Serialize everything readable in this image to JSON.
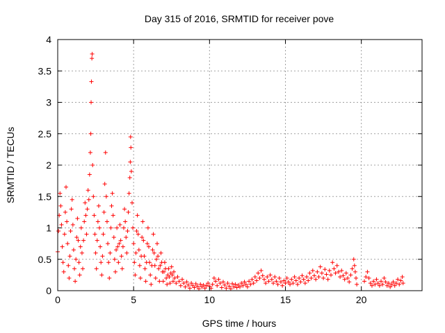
{
  "chart_data": {
    "type": "scatter",
    "title": "Day 315 of 2016, SRMTID for receiver pove",
    "xlabel": "GPS time / hours",
    "ylabel": "SRMTID / TECUs",
    "xlim": [
      0,
      24
    ],
    "ylim": [
      0,
      4
    ],
    "xticks": [
      0,
      5,
      10,
      15,
      20
    ],
    "yticks": [
      0,
      0.5,
      1,
      1.5,
      2,
      2.5,
      3,
      3.5,
      4
    ],
    "xtick_labels": [
      "0",
      "5",
      "10",
      "15",
      "20"
    ],
    "ytick_labels": [
      "0",
      "0.5",
      "1",
      "1.5",
      "2",
      "2.5",
      "3",
      "3.5",
      "4"
    ],
    "grid": true,
    "marker": "plus",
    "color": "#ff0000",
    "series": [
      {
        "name": "SRMTID",
        "points": [
          [
            0.0,
            0.62
          ],
          [
            0.05,
            0.95
          ],
          [
            0.1,
            1.2
          ],
          [
            0.15,
            1.55
          ],
          [
            0.2,
            1.35
          ],
          [
            0.25,
            1.05
          ],
          [
            0.3,
            0.7
          ],
          [
            0.35,
            0.45
          ],
          [
            0.4,
            0.3
          ],
          [
            0.45,
            0.9
          ],
          [
            0.5,
            1.25
          ],
          [
            0.55,
            1.65
          ],
          [
            0.6,
            1.1
          ],
          [
            0.65,
            0.75
          ],
          [
            0.7,
            0.4
          ],
          [
            0.75,
            0.2
          ],
          [
            0.8,
            0.55
          ],
          [
            0.85,
            0.95
          ],
          [
            0.9,
            1.3
          ],
          [
            0.95,
            1.45
          ],
          [
            1.0,
            1.05
          ],
          [
            1.05,
            0.65
          ],
          [
            1.1,
            0.35
          ],
          [
            1.15,
            0.15
          ],
          [
            1.2,
            0.5
          ],
          [
            1.25,
            0.85
          ],
          [
            1.3,
            1.15
          ],
          [
            1.35,
            0.8
          ],
          [
            1.4,
            0.45
          ],
          [
            1.45,
            0.25
          ],
          [
            1.5,
            0.7
          ],
          [
            1.55,
            1.0
          ],
          [
            1.6,
            0.6
          ],
          [
            1.65,
            0.35
          ],
          [
            1.7,
            0.8
          ],
          [
            1.75,
            1.1
          ],
          [
            1.8,
            1.4
          ],
          [
            1.85,
            1.2
          ],
          [
            1.9,
            0.9
          ],
          [
            1.95,
            1.3
          ],
          [
            2.0,
            1.6
          ],
          [
            2.05,
            1.45
          ],
          [
            2.1,
            1.85
          ],
          [
            2.15,
            2.2
          ],
          [
            2.18,
            2.5
          ],
          [
            2.2,
            3.0
          ],
          [
            2.22,
            3.33
          ],
          [
            2.25,
            3.7
          ],
          [
            2.27,
            3.77
          ],
          [
            2.3,
            2.0
          ],
          [
            2.35,
            1.5
          ],
          [
            2.4,
            1.2
          ],
          [
            2.45,
            0.9
          ],
          [
            2.5,
            0.6
          ],
          [
            2.55,
            0.35
          ],
          [
            2.6,
            0.8
          ],
          [
            2.65,
            1.1
          ],
          [
            2.7,
            1.35
          ],
          [
            2.75,
            1.0
          ],
          [
            2.8,
            0.7
          ],
          [
            2.85,
            0.45
          ],
          [
            2.9,
            0.25
          ],
          [
            2.95,
            0.55
          ],
          [
            3.0,
            0.9
          ],
          [
            3.05,
            1.25
          ],
          [
            3.1,
            1.7
          ],
          [
            3.15,
            2.2
          ],
          [
            3.2,
            1.5
          ],
          [
            3.25,
            1.1
          ],
          [
            3.3,
            0.75
          ],
          [
            3.35,
            0.45
          ],
          [
            3.4,
            0.2
          ],
          [
            3.45,
            0.6
          ],
          [
            3.5,
            1.0
          ],
          [
            3.55,
            1.35
          ],
          [
            3.6,
            1.55
          ],
          [
            3.65,
            1.2
          ],
          [
            3.7,
            0.85
          ],
          [
            3.75,
            0.5
          ],
          [
            3.8,
            0.3
          ],
          [
            3.85,
            0.65
          ],
          [
            3.9,
            1.0
          ],
          [
            3.95,
            0.7
          ],
          [
            4.0,
            0.45
          ],
          [
            4.05,
            0.75
          ],
          [
            4.1,
            1.05
          ],
          [
            4.15,
            0.8
          ],
          [
            4.2,
            0.55
          ],
          [
            4.25,
            0.35
          ],
          [
            4.3,
            0.7
          ],
          [
            4.35,
            1.0
          ],
          [
            4.4,
            1.3
          ],
          [
            4.45,
            1.1
          ],
          [
            4.5,
            0.85
          ],
          [
            4.55,
            0.6
          ],
          [
            4.6,
            0.95
          ],
          [
            4.65,
            1.25
          ],
          [
            4.7,
            1.55
          ],
          [
            4.75,
            1.8
          ],
          [
            4.78,
            2.05
          ],
          [
            4.8,
            2.45
          ],
          [
            4.82,
            2.28
          ],
          [
            4.85,
            1.9
          ],
          [
            4.9,
            1.4
          ],
          [
            4.95,
            1.0
          ],
          [
            5.0,
            0.75
          ],
          [
            5.05,
            0.45
          ],
          [
            5.1,
            0.25
          ],
          [
            5.15,
            0.6
          ],
          [
            5.2,
            0.95
          ],
          [
            5.25,
            1.2
          ],
          [
            5.3,
            0.9
          ],
          [
            5.35,
            0.65
          ],
          [
            5.4,
            0.4
          ],
          [
            5.45,
            0.2
          ],
          [
            5.5,
            0.55
          ],
          [
            5.55,
            0.85
          ],
          [
            5.6,
            1.1
          ],
          [
            5.65,
            0.8
          ],
          [
            5.7,
            0.55
          ],
          [
            5.75,
            0.35
          ],
          [
            5.8,
            0.15
          ],
          [
            5.85,
            0.45
          ],
          [
            5.9,
            0.75
          ],
          [
            5.95,
            1.0
          ],
          [
            6.0,
            0.7
          ],
          [
            6.05,
            0.45
          ],
          [
            6.1,
            0.25
          ],
          [
            6.15,
            0.1
          ],
          [
            6.2,
            0.4
          ],
          [
            6.25,
            0.65
          ],
          [
            6.3,
            0.9
          ],
          [
            6.35,
            0.6
          ],
          [
            6.4,
            0.4
          ],
          [
            6.45,
            0.2
          ],
          [
            6.5,
            0.5
          ],
          [
            6.55,
            0.75
          ],
          [
            6.6,
            0.55
          ],
          [
            6.65,
            0.35
          ],
          [
            6.7,
            0.15
          ],
          [
            6.75,
            0.4
          ],
          [
            6.8,
            0.6
          ],
          [
            6.85,
            0.45
          ],
          [
            6.9,
            0.3
          ],
          [
            6.95,
            0.15
          ],
          [
            7.0,
            0.3
          ],
          [
            7.05,
            0.45
          ],
          [
            7.1,
            0.35
          ],
          [
            7.15,
            0.2
          ],
          [
            7.2,
            0.1
          ],
          [
            7.25,
            0.25
          ],
          [
            7.3,
            0.35
          ],
          [
            7.35,
            0.22
          ],
          [
            7.4,
            0.12
          ],
          [
            7.45,
            0.28
          ],
          [
            7.5,
            0.38
          ],
          [
            7.55,
            0.25
          ],
          [
            7.6,
            0.15
          ],
          [
            7.65,
            0.3
          ],
          [
            7.7,
            0.2
          ],
          [
            7.8,
            0.12
          ],
          [
            7.9,
            0.22
          ],
          [
            8.0,
            0.15
          ],
          [
            8.1,
            0.08
          ],
          [
            8.2,
            0.18
          ],
          [
            8.3,
            0.12
          ],
          [
            8.4,
            0.06
          ],
          [
            8.5,
            0.14
          ],
          [
            8.6,
            0.09
          ],
          [
            8.7,
            0.04
          ],
          [
            8.8,
            0.12
          ],
          [
            8.9,
            0.08
          ],
          [
            9.0,
            0.05
          ],
          [
            9.1,
            0.11
          ],
          [
            9.2,
            0.07
          ],
          [
            9.3,
            0.03
          ],
          [
            9.4,
            0.1
          ],
          [
            9.5,
            0.06
          ],
          [
            9.6,
            0.09
          ],
          [
            9.7,
            0.04
          ],
          [
            9.8,
            0.08
          ],
          [
            9.9,
            0.12
          ],
          [
            10.0,
            0.07
          ],
          [
            10.1,
            0.04
          ],
          [
            10.2,
            0.1
          ],
          [
            10.3,
            0.2
          ],
          [
            10.4,
            0.15
          ],
          [
            10.5,
            0.08
          ],
          [
            10.6,
            0.18
          ],
          [
            10.7,
            0.12
          ],
          [
            10.8,
            0.05
          ],
          [
            10.9,
            0.14
          ],
          [
            11.0,
            0.09
          ],
          [
            11.1,
            0.04
          ],
          [
            11.2,
            0.12
          ],
          [
            11.3,
            0.07
          ],
          [
            11.4,
            0.03
          ],
          [
            11.5,
            0.11
          ],
          [
            11.6,
            0.06
          ],
          [
            11.7,
            0.1
          ],
          [
            11.8,
            0.05
          ],
          [
            11.9,
            0.09
          ],
          [
            12.0,
            0.06
          ],
          [
            12.1,
            0.12
          ],
          [
            12.2,
            0.08
          ],
          [
            12.3,
            0.14
          ],
          [
            12.4,
            0.1
          ],
          [
            12.5,
            0.06
          ],
          [
            12.6,
            0.15
          ],
          [
            12.7,
            0.1
          ],
          [
            12.8,
            0.18
          ],
          [
            12.9,
            0.12
          ],
          [
            13.0,
            0.22
          ],
          [
            13.1,
            0.16
          ],
          [
            13.2,
            0.28
          ],
          [
            13.3,
            0.2
          ],
          [
            13.4,
            0.32
          ],
          [
            13.5,
            0.24
          ],
          [
            13.6,
            0.18
          ],
          [
            13.7,
            0.12
          ],
          [
            13.8,
            0.22
          ],
          [
            13.9,
            0.15
          ],
          [
            14.0,
            0.25
          ],
          [
            14.1,
            0.18
          ],
          [
            14.2,
            0.12
          ],
          [
            14.3,
            0.22
          ],
          [
            14.4,
            0.15
          ],
          [
            14.5,
            0.1
          ],
          [
            14.6,
            0.2
          ],
          [
            14.7,
            0.14
          ],
          [
            14.8,
            0.08
          ],
          [
            14.9,
            0.16
          ],
          [
            15.0,
            0.12
          ],
          [
            15.1,
            0.2
          ],
          [
            15.2,
            0.14
          ],
          [
            15.3,
            0.1
          ],
          [
            15.4,
            0.18
          ],
          [
            15.5,
            0.12
          ],
          [
            15.6,
            0.22
          ],
          [
            15.7,
            0.16
          ],
          [
            15.8,
            0.1
          ],
          [
            15.9,
            0.2
          ],
          [
            16.0,
            0.14
          ],
          [
            16.1,
            0.24
          ],
          [
            16.2,
            0.18
          ],
          [
            16.3,
            0.12
          ],
          [
            16.4,
            0.22
          ],
          [
            16.5,
            0.16
          ],
          [
            16.6,
            0.28
          ],
          [
            16.7,
            0.2
          ],
          [
            16.8,
            0.32
          ],
          [
            16.9,
            0.24
          ],
          [
            17.0,
            0.18
          ],
          [
            17.1,
            0.3
          ],
          [
            17.2,
            0.22
          ],
          [
            17.3,
            0.38
          ],
          [
            17.4,
            0.28
          ],
          [
            17.5,
            0.2
          ],
          [
            17.6,
            0.34
          ],
          [
            17.7,
            0.26
          ],
          [
            17.8,
            0.18
          ],
          [
            17.9,
            0.32
          ],
          [
            18.0,
            0.25
          ],
          [
            18.1,
            0.45
          ],
          [
            18.2,
            0.35
          ],
          [
            18.3,
            0.28
          ],
          [
            18.4,
            0.4
          ],
          [
            18.5,
            0.3
          ],
          [
            18.6,
            0.22
          ],
          [
            18.7,
            0.32
          ],
          [
            18.8,
            0.24
          ],
          [
            18.9,
            0.18
          ],
          [
            19.0,
            0.28
          ],
          [
            19.1,
            0.2
          ],
          [
            19.2,
            0.14
          ],
          [
            19.3,
            0.25
          ],
          [
            19.4,
            0.35
          ],
          [
            19.5,
            0.5
          ],
          [
            19.55,
            0.4
          ],
          [
            19.6,
            0.3
          ],
          [
            19.65,
            0.2
          ],
          [
            19.7,
            0.1
          ],
          [
            20.2,
            0.15
          ],
          [
            20.3,
            0.22
          ],
          [
            20.4,
            0.3
          ],
          [
            20.5,
            0.2
          ],
          [
            20.6,
            0.12
          ],
          [
            20.7,
            0.08
          ],
          [
            20.8,
            0.15
          ],
          [
            20.9,
            0.1
          ],
          [
            21.0,
            0.18
          ],
          [
            21.1,
            0.12
          ],
          [
            21.2,
            0.08
          ],
          [
            21.3,
            0.15
          ],
          [
            21.4,
            0.1
          ],
          [
            21.5,
            0.2
          ],
          [
            21.6,
            0.14
          ],
          [
            21.7,
            0.08
          ],
          [
            21.8,
            0.12
          ],
          [
            21.9,
            0.06
          ],
          [
            22.0,
            0.1
          ],
          [
            22.1,
            0.14
          ],
          [
            22.2,
            0.08
          ],
          [
            22.3,
            0.12
          ],
          [
            22.4,
            0.18
          ],
          [
            22.5,
            0.1
          ],
          [
            22.6,
            0.16
          ],
          [
            22.7,
            0.22
          ],
          [
            22.75,
            0.12
          ]
        ]
      }
    ]
  }
}
